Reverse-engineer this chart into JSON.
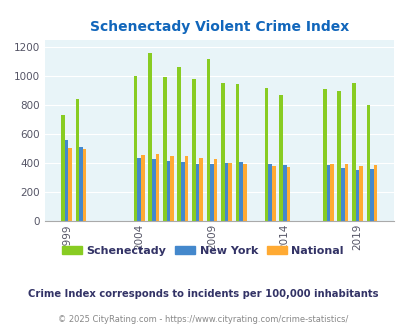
{
  "title": "Schenectady Violent Crime Index",
  "years": [
    1999,
    2000,
    2004,
    2005,
    2006,
    2007,
    2008,
    2009,
    2010,
    2011,
    2013,
    2014,
    2017,
    2018,
    2019,
    2020
  ],
  "schenectady": [
    730,
    840,
    1000,
    1155,
    990,
    1060,
    980,
    1115,
    950,
    945,
    920,
    870,
    910,
    895,
    950,
    800
  ],
  "new_york": [
    560,
    510,
    435,
    425,
    415,
    405,
    395,
    395,
    400,
    410,
    395,
    385,
    385,
    365,
    355,
    360
  ],
  "national": [
    505,
    500,
    455,
    465,
    450,
    450,
    435,
    430,
    400,
    390,
    380,
    375,
    395,
    395,
    380,
    385
  ],
  "colors": {
    "schenectady": "#88cc22",
    "new_york": "#4488cc",
    "national": "#ffaa33"
  },
  "bar_width": 0.25,
  "ylim": [
    0,
    1250
  ],
  "yticks": [
    0,
    200,
    400,
    600,
    800,
    1000,
    1200
  ],
  "bg_color": "#e8f4f8",
  "legend_labels": [
    "Schenectady",
    "New York",
    "National"
  ],
  "footnote1": "Crime Index corresponds to incidents per 100,000 inhabitants",
  "footnote2": "© 2025 CityRating.com - https://www.cityrating.com/crime-statistics/",
  "tick_years": [
    1999,
    2004,
    2009,
    2014,
    2019
  ],
  "xlim": [
    1997.5,
    2021.5
  ],
  "title_color": "#1166bb",
  "footnote1_color": "#333366",
  "footnote2_color": "#888888"
}
